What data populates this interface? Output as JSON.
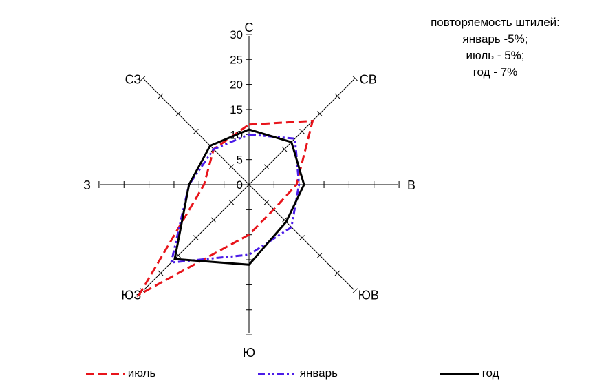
{
  "note": {
    "title": "повторяемость штилей:",
    "lines": [
      "январь -5%;",
      "июль - 5%;",
      "год - 7%"
    ]
  },
  "colors": {
    "july": "#e8141b",
    "january": "#4b1ce8",
    "year": "#000000"
  },
  "chart_data": {
    "type": "radar",
    "directions": [
      "С",
      "СВ",
      "В",
      "ЮВ",
      "Ю",
      "ЮЗ",
      "З",
      "СЗ"
    ],
    "radial_ticks": [
      "0",
      "5",
      "10",
      "15",
      "20",
      "25",
      "30"
    ],
    "rmax": 30,
    "series": [
      {
        "name": "июль",
        "values": [
          12,
          18,
          9.5,
          7,
          10,
          31,
          9,
          10
        ]
      },
      {
        "name": "январь",
        "values": [
          10,
          13,
          10,
          12,
          14,
          22,
          12,
          10
        ]
      },
      {
        "name": "год",
        "values": [
          11,
          12,
          11,
          10.5,
          16,
          21,
          12,
          11
        ]
      }
    ],
    "legend_placement": "bottom"
  }
}
